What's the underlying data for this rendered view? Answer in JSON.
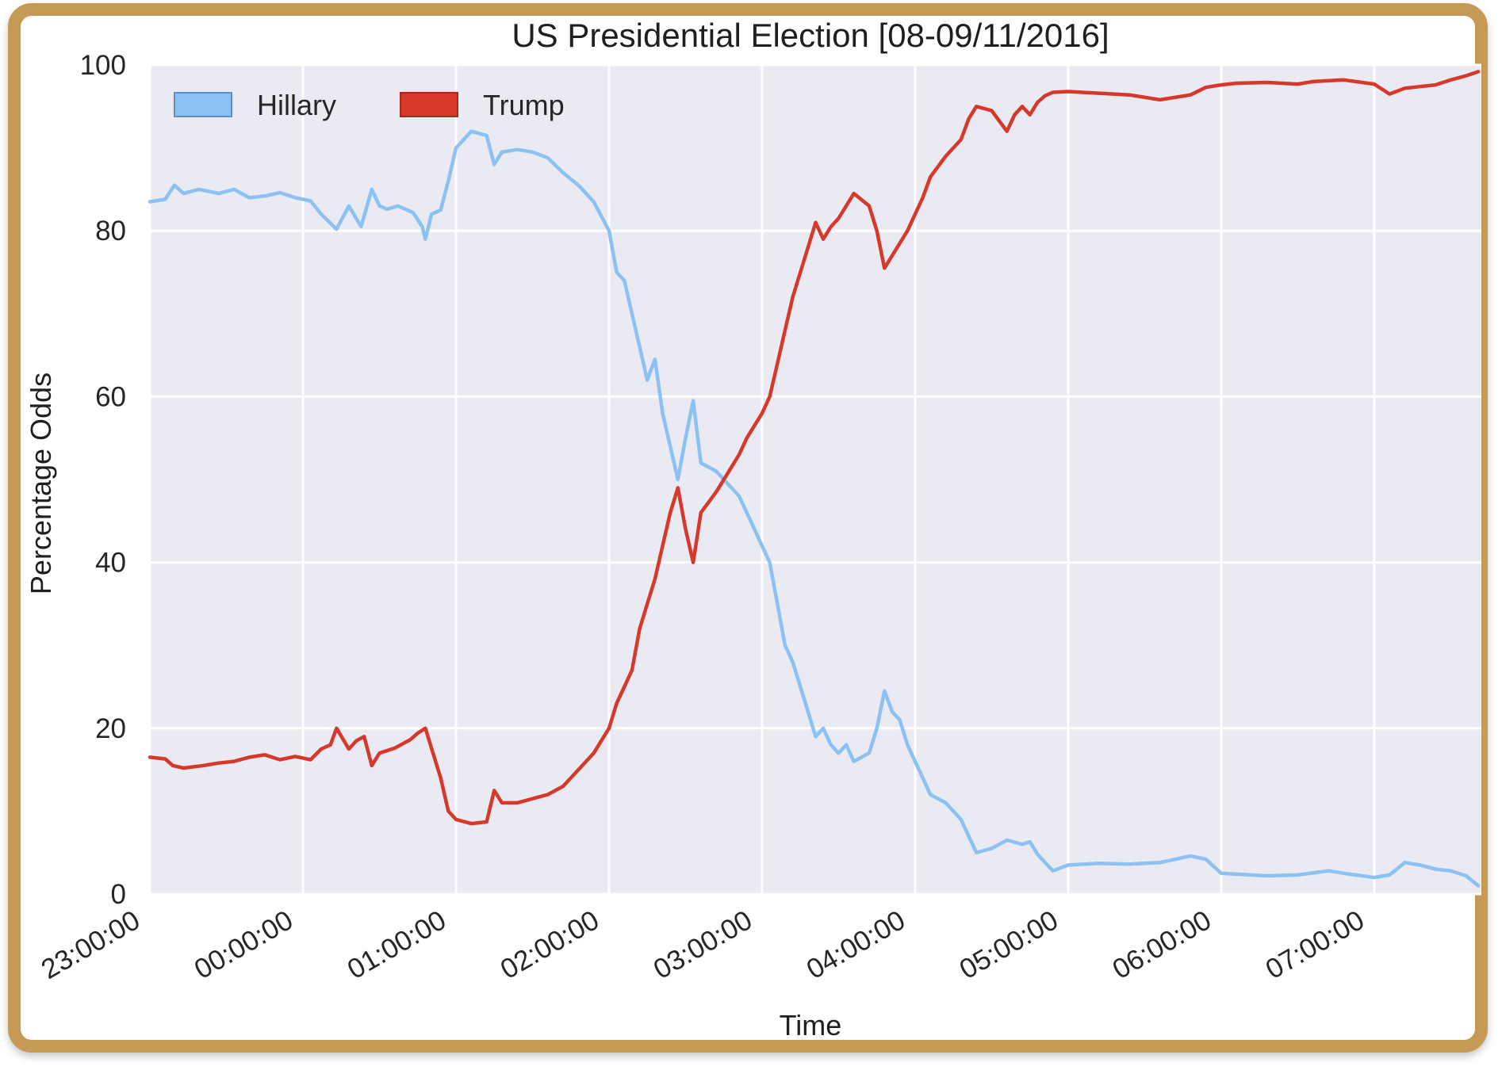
{
  "colors": {
    "frame": "#c69a55",
    "plot_bg": "#eaeaf2",
    "grid": "#ffffff",
    "hillary": "#8cc1f3",
    "trump": "#d6392b"
  },
  "chart_data": {
    "type": "line",
    "title": "US Presidential Election [08-09/11/2016]",
    "xlabel": "Time",
    "ylabel": "Percentage Odds",
    "ylim": [
      0,
      100
    ],
    "xlim": [
      0,
      8.7
    ],
    "x_unit": "hours after 23:00:00",
    "yticks": [
      0,
      20,
      40,
      60,
      80,
      100
    ],
    "xticks": [
      {
        "x": 0,
        "label": "23:00:00"
      },
      {
        "x": 1,
        "label": "00:00:00"
      },
      {
        "x": 2,
        "label": "01:00:00"
      },
      {
        "x": 3,
        "label": "02:00:00"
      },
      {
        "x": 4,
        "label": "03:00:00"
      },
      {
        "x": 5,
        "label": "04:00:00"
      },
      {
        "x": 6,
        "label": "05:00:00"
      },
      {
        "x": 7,
        "label": "06:00:00"
      },
      {
        "x": 8,
        "label": "07:00:00"
      }
    ],
    "grid": true,
    "legend_position": "top-left",
    "series": [
      {
        "name": "Hillary",
        "color": "#8cc1f3",
        "points": [
          [
            0,
            83.5
          ],
          [
            0.1,
            83.8
          ],
          [
            0.16,
            85.5
          ],
          [
            0.22,
            84.5
          ],
          [
            0.32,
            85
          ],
          [
            0.45,
            84.5
          ],
          [
            0.55,
            85
          ],
          [
            0.65,
            84
          ],
          [
            0.75,
            84.2
          ],
          [
            0.85,
            84.6
          ],
          [
            0.95,
            84
          ],
          [
            1.05,
            83.6
          ],
          [
            1.12,
            82
          ],
          [
            1.22,
            80.2
          ],
          [
            1.3,
            83
          ],
          [
            1.38,
            80.5
          ],
          [
            1.45,
            85
          ],
          [
            1.5,
            83
          ],
          [
            1.55,
            82.6
          ],
          [
            1.62,
            83
          ],
          [
            1.72,
            82.2
          ],
          [
            1.78,
            80.5
          ],
          [
            1.8,
            79
          ],
          [
            1.84,
            82
          ],
          [
            1.9,
            82.5
          ],
          [
            1.95,
            86
          ],
          [
            2.0,
            90
          ],
          [
            2.1,
            92
          ],
          [
            2.2,
            91.5
          ],
          [
            2.25,
            88
          ],
          [
            2.3,
            89.5
          ],
          [
            2.4,
            89.8
          ],
          [
            2.5,
            89.5
          ],
          [
            2.6,
            88.8
          ],
          [
            2.7,
            87
          ],
          [
            2.8,
            85.5
          ],
          [
            2.9,
            83.5
          ],
          [
            3.0,
            80
          ],
          [
            3.05,
            75
          ],
          [
            3.1,
            74
          ],
          [
            3.15,
            70
          ],
          [
            3.2,
            66
          ],
          [
            3.25,
            62
          ],
          [
            3.3,
            64.5
          ],
          [
            3.35,
            58
          ],
          [
            3.4,
            54
          ],
          [
            3.45,
            50
          ],
          [
            3.5,
            55
          ],
          [
            3.55,
            59.5
          ],
          [
            3.6,
            52
          ],
          [
            3.7,
            51
          ],
          [
            3.8,
            49
          ],
          [
            3.85,
            48
          ],
          [
            3.9,
            46
          ],
          [
            4.0,
            42
          ],
          [
            4.05,
            40
          ],
          [
            4.1,
            35
          ],
          [
            4.15,
            30
          ],
          [
            4.2,
            28
          ],
          [
            4.3,
            22
          ],
          [
            4.35,
            19
          ],
          [
            4.4,
            20
          ],
          [
            4.45,
            18
          ],
          [
            4.5,
            17
          ],
          [
            4.55,
            18
          ],
          [
            4.6,
            16
          ],
          [
            4.7,
            17
          ],
          [
            4.75,
            20
          ],
          [
            4.8,
            24.5
          ],
          [
            4.85,
            22
          ],
          [
            4.9,
            21
          ],
          [
            4.95,
            18
          ],
          [
            5.0,
            16
          ],
          [
            5.05,
            14
          ],
          [
            5.1,
            12
          ],
          [
            5.2,
            11
          ],
          [
            5.3,
            9
          ],
          [
            5.35,
            7
          ],
          [
            5.4,
            5
          ],
          [
            5.5,
            5.5
          ],
          [
            5.6,
            6.5
          ],
          [
            5.7,
            6
          ],
          [
            5.75,
            6.3
          ],
          [
            5.8,
            4.8
          ],
          [
            5.85,
            3.8
          ],
          [
            5.9,
            2.8
          ],
          [
            6.0,
            3.5
          ],
          [
            6.2,
            3.7
          ],
          [
            6.4,
            3.6
          ],
          [
            6.6,
            3.8
          ],
          [
            6.7,
            4.2
          ],
          [
            6.8,
            4.6
          ],
          [
            6.9,
            4.2
          ],
          [
            7.0,
            2.5
          ],
          [
            7.1,
            2.4
          ],
          [
            7.3,
            2.2
          ],
          [
            7.5,
            2.3
          ],
          [
            7.7,
            2.8
          ],
          [
            7.8,
            2.5
          ],
          [
            8.0,
            2.0
          ],
          [
            8.1,
            2.3
          ],
          [
            8.2,
            3.8
          ],
          [
            8.3,
            3.5
          ],
          [
            8.4,
            3
          ],
          [
            8.5,
            2.8
          ],
          [
            8.6,
            2.2
          ],
          [
            8.68,
            1.0
          ]
        ]
      },
      {
        "name": "Trump",
        "color": "#d6392b",
        "points": [
          [
            0,
            16.5
          ],
          [
            0.1,
            16.3
          ],
          [
            0.15,
            15.5
          ],
          [
            0.22,
            15.2
          ],
          [
            0.35,
            15.5
          ],
          [
            0.45,
            15.8
          ],
          [
            0.55,
            16
          ],
          [
            0.65,
            16.5
          ],
          [
            0.75,
            16.8
          ],
          [
            0.85,
            16.2
          ],
          [
            0.95,
            16.6
          ],
          [
            1.05,
            16.2
          ],
          [
            1.12,
            17.5
          ],
          [
            1.18,
            18
          ],
          [
            1.22,
            20
          ],
          [
            1.3,
            17.5
          ],
          [
            1.35,
            18.5
          ],
          [
            1.4,
            19
          ],
          [
            1.45,
            15.5
          ],
          [
            1.5,
            17
          ],
          [
            1.6,
            17.6
          ],
          [
            1.7,
            18.6
          ],
          [
            1.75,
            19.4
          ],
          [
            1.8,
            20
          ],
          [
            1.85,
            17
          ],
          [
            1.9,
            14
          ],
          [
            1.95,
            10
          ],
          [
            2.0,
            9
          ],
          [
            2.1,
            8.5
          ],
          [
            2.2,
            8.7
          ],
          [
            2.25,
            12.5
          ],
          [
            2.3,
            11
          ],
          [
            2.4,
            11
          ],
          [
            2.5,
            11.5
          ],
          [
            2.6,
            12
          ],
          [
            2.7,
            13
          ],
          [
            2.8,
            15
          ],
          [
            2.9,
            17
          ],
          [
            3.0,
            20
          ],
          [
            3.05,
            23
          ],
          [
            3.1,
            25
          ],
          [
            3.15,
            27
          ],
          [
            3.2,
            32
          ],
          [
            3.25,
            35
          ],
          [
            3.3,
            38
          ],
          [
            3.35,
            42
          ],
          [
            3.4,
            46
          ],
          [
            3.45,
            49
          ],
          [
            3.5,
            44
          ],
          [
            3.55,
            40
          ],
          [
            3.6,
            46
          ],
          [
            3.7,
            48.5
          ],
          [
            3.8,
            51.5
          ],
          [
            3.85,
            53
          ],
          [
            3.9,
            55
          ],
          [
            4.0,
            58
          ],
          [
            4.05,
            60
          ],
          [
            4.1,
            64
          ],
          [
            4.15,
            68
          ],
          [
            4.2,
            72
          ],
          [
            4.3,
            78
          ],
          [
            4.35,
            81
          ],
          [
            4.4,
            79
          ],
          [
            4.45,
            80.5
          ],
          [
            4.5,
            81.5
          ],
          [
            4.55,
            83
          ],
          [
            4.6,
            84.5
          ],
          [
            4.7,
            83
          ],
          [
            4.75,
            80
          ],
          [
            4.8,
            75.5
          ],
          [
            4.85,
            77
          ],
          [
            4.9,
            78.5
          ],
          [
            4.95,
            80
          ],
          [
            5.0,
            82
          ],
          [
            5.05,
            84
          ],
          [
            5.1,
            86.5
          ],
          [
            5.2,
            89
          ],
          [
            5.3,
            91
          ],
          [
            5.35,
            93.5
          ],
          [
            5.4,
            95
          ],
          [
            5.5,
            94.5
          ],
          [
            5.6,
            92
          ],
          [
            5.65,
            94
          ],
          [
            5.7,
            95
          ],
          [
            5.75,
            94
          ],
          [
            5.8,
            95.5
          ],
          [
            5.85,
            96.3
          ],
          [
            5.9,
            96.7
          ],
          [
            6.0,
            96.8
          ],
          [
            6.2,
            96.6
          ],
          [
            6.4,
            96.4
          ],
          [
            6.6,
            95.8
          ],
          [
            6.8,
            96.4
          ],
          [
            6.9,
            97.3
          ],
          [
            7.0,
            97.6
          ],
          [
            7.1,
            97.8
          ],
          [
            7.3,
            97.9
          ],
          [
            7.5,
            97.7
          ],
          [
            7.6,
            98
          ],
          [
            7.8,
            98.2
          ],
          [
            8.0,
            97.7
          ],
          [
            8.1,
            96.5
          ],
          [
            8.2,
            97.2
          ],
          [
            8.3,
            97.4
          ],
          [
            8.4,
            97.6
          ],
          [
            8.5,
            98.2
          ],
          [
            8.6,
            98.7
          ],
          [
            8.68,
            99.2
          ]
        ]
      }
    ]
  }
}
